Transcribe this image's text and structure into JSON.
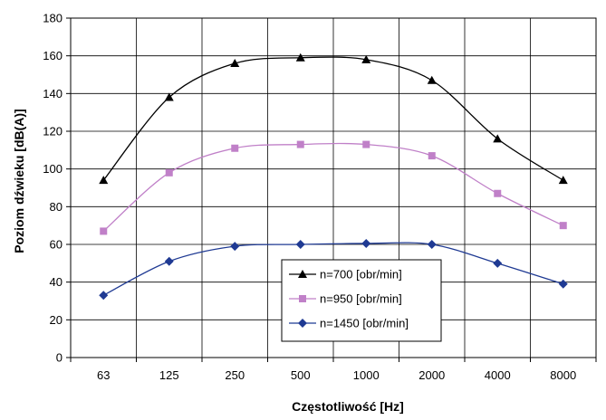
{
  "chart_data": {
    "type": "line",
    "title": "",
    "xlabel": "Częstotliwość [Hz]",
    "ylabel": "Poziom dźwieku [dB(A)]",
    "categories": [
      "63",
      "125",
      "250",
      "500",
      "1000",
      "2000",
      "4000",
      "8000"
    ],
    "ylim": [
      0,
      180
    ],
    "yticks": [
      0,
      20,
      40,
      60,
      80,
      100,
      120,
      140,
      160,
      180
    ],
    "grid": true,
    "legend_position": "bottom-center",
    "series": [
      {
        "name": "n=700 [obr/min]",
        "marker": "triangle",
        "color": "#000000",
        "values": [
          94,
          138,
          156,
          159,
          158,
          147,
          116,
          94
        ]
      },
      {
        "name": "n=950 [obr/min]",
        "marker": "square",
        "color": "#c080c8",
        "values": [
          67,
          98,
          111,
          113,
          113,
          107,
          87,
          70
        ]
      },
      {
        "name": "n=1450 [obr/min]",
        "marker": "diamond",
        "color": "#1f3a93",
        "values": [
          33,
          51,
          59,
          60,
          60.5,
          60,
          50,
          39
        ]
      }
    ]
  }
}
